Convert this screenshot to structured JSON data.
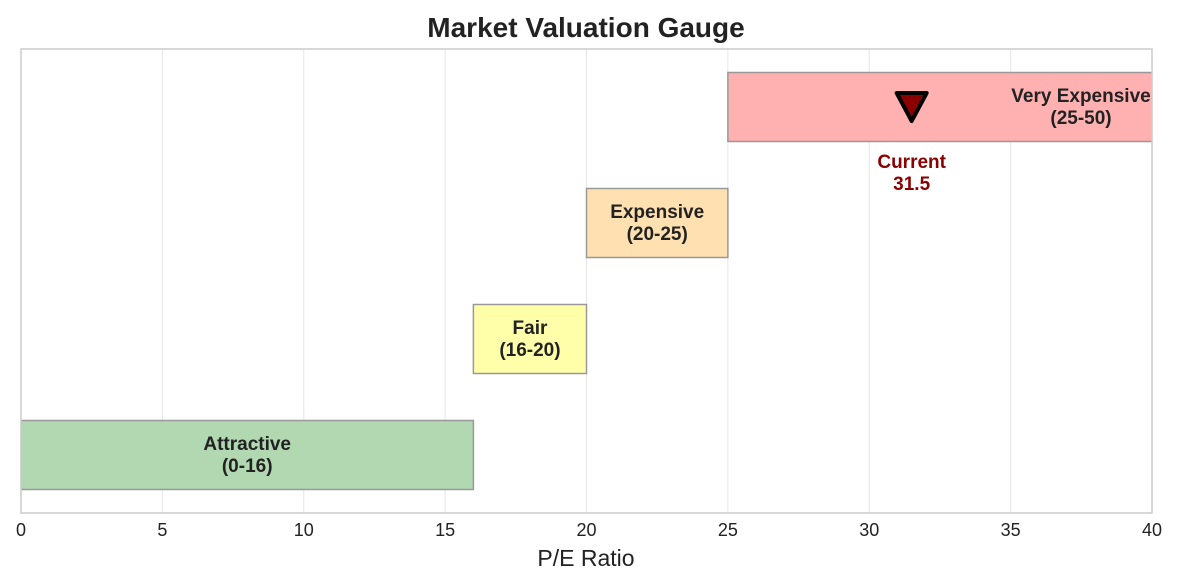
{
  "chart_data": {
    "type": "bar",
    "orientation": "horizontal-range",
    "title": "Market Valuation Gauge",
    "xlabel": "P/E Ratio",
    "ylabel": "",
    "xlim": [
      0,
      40
    ],
    "xticks": [
      0,
      5,
      10,
      15,
      20,
      25,
      30,
      35,
      40
    ],
    "grid": true,
    "bands": [
      {
        "name": "Attractive",
        "range_label": "(0-16)",
        "start": 0,
        "end": 16,
        "color": "#b2d8b2"
      },
      {
        "name": "Fair",
        "range_label": "(16-20)",
        "start": 16,
        "end": 20,
        "color": "#ffffaa"
      },
      {
        "name": "Expensive",
        "range_label": "(20-25)",
        "start": 20,
        "end": 25,
        "color": "#ffe0b0"
      },
      {
        "name": "Very Expensive",
        "range_label": "(25-50)",
        "start": 25,
        "end": 50,
        "color": "#ffb0b0"
      }
    ],
    "current": {
      "label": "Current",
      "value": 31.5,
      "value_label": "31.5",
      "color": "#8b0000"
    }
  }
}
